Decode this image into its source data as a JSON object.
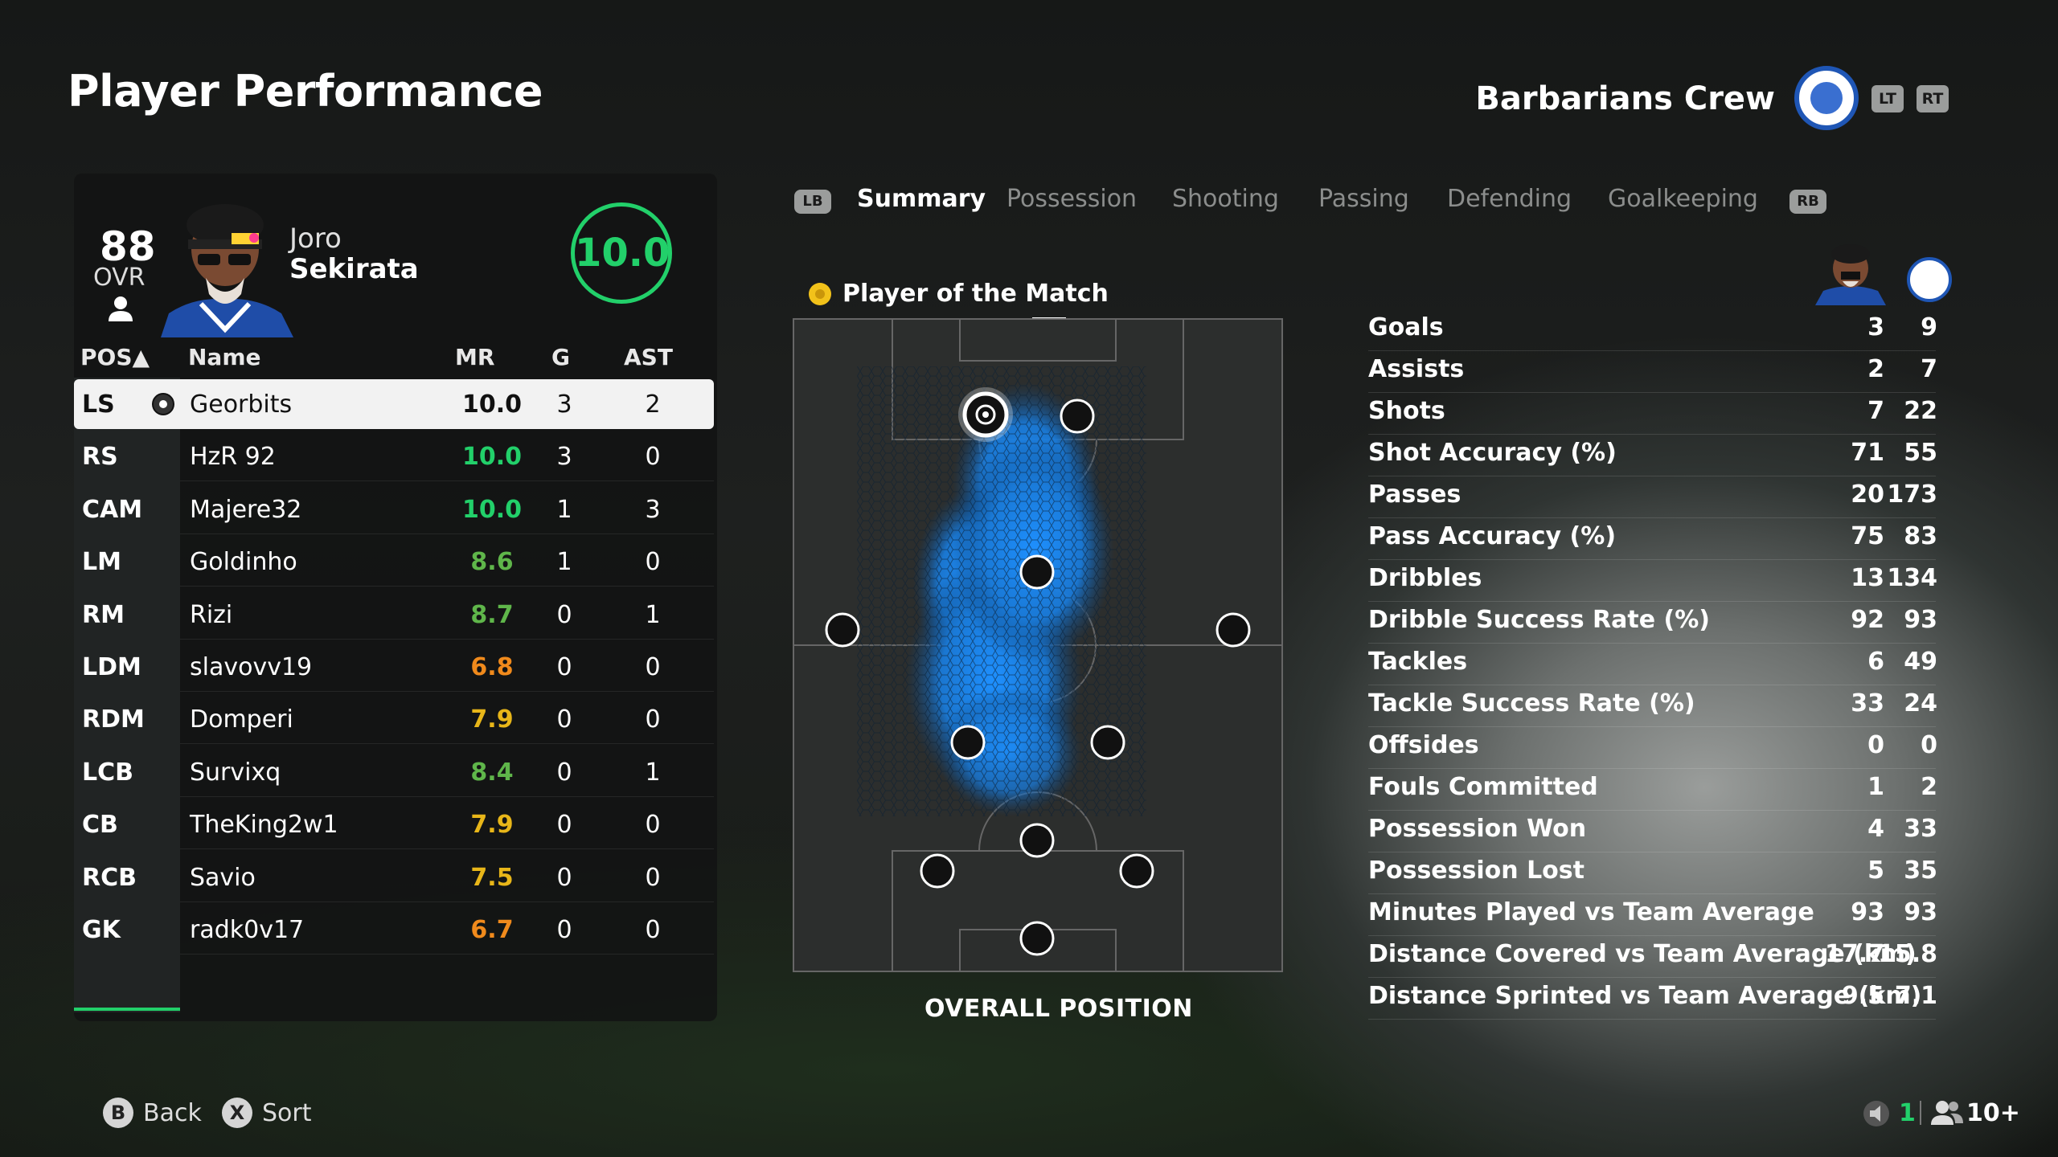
{
  "header": {
    "title": "Player Performance",
    "club_name": "Barbarians Crew",
    "lt": "LT",
    "rt": "RT"
  },
  "player": {
    "ovr": "88",
    "ovr_label": "OVR",
    "first_name": "Joro",
    "last_name": "Sekirata",
    "match_rating": "10.0"
  },
  "table": {
    "headers": {
      "pos": "POS▲",
      "name": "Name",
      "mr": "MR",
      "g": "G",
      "ast": "AST"
    },
    "rows": [
      {
        "pos": "LS",
        "name": "Georbits",
        "mr": "10.0",
        "g": "3",
        "ast": "2",
        "mr_color": "#111111"
      },
      {
        "pos": "RS",
        "name": "HzR 92",
        "mr": "10.0",
        "g": "3",
        "ast": "0",
        "mr_color": "#22d06a"
      },
      {
        "pos": "CAM",
        "name": "Majere32",
        "mr": "10.0",
        "g": "1",
        "ast": "3",
        "mr_color": "#22d06a"
      },
      {
        "pos": "LM",
        "name": "Goldinho",
        "mr": "8.6",
        "g": "1",
        "ast": "0",
        "mr_color": "#5fb64a"
      },
      {
        "pos": "RM",
        "name": "Rizi",
        "mr": "8.7",
        "g": "0",
        "ast": "1",
        "mr_color": "#5fb64a"
      },
      {
        "pos": "LDM",
        "name": "slavovv19",
        "mr": "6.8",
        "g": "0",
        "ast": "0",
        "mr_color": "#f08a1c"
      },
      {
        "pos": "RDM",
        "name": "Domperi",
        "mr": "7.9",
        "g": "0",
        "ast": "0",
        "mr_color": "#e8b619"
      },
      {
        "pos": "LCB",
        "name": "Survixq",
        "mr": "8.4",
        "g": "0",
        "ast": "1",
        "mr_color": "#5fb64a"
      },
      {
        "pos": "CB",
        "name": "TheKing2w1",
        "mr": "7.9",
        "g": "0",
        "ast": "0",
        "mr_color": "#e8b619"
      },
      {
        "pos": "RCB",
        "name": "Savio",
        "mr": "7.5",
        "g": "0",
        "ast": "0",
        "mr_color": "#e8b619"
      },
      {
        "pos": "GK",
        "name": "radk0v17",
        "mr": "6.7",
        "g": "0",
        "ast": "0",
        "mr_color": "#f08a1c"
      }
    ]
  },
  "tabs": {
    "lb": "LB",
    "rb": "RB",
    "items": [
      "Summary",
      "Possession",
      "Shooting",
      "Passing",
      "Defending",
      "Goalkeeping"
    ],
    "active": "Summary"
  },
  "pitch": {
    "potm_label": "Player of the Match",
    "caption": "OVERALL POSITION"
  },
  "stats": [
    {
      "label": "Goals",
      "player": "3",
      "team": "9"
    },
    {
      "label": "Assists",
      "player": "2",
      "team": "7"
    },
    {
      "label": "Shots",
      "player": "7",
      "team": "22"
    },
    {
      "label": "Shot Accuracy (%)",
      "player": "71",
      "team": "55"
    },
    {
      "label": "Passes",
      "player": "20",
      "team": "173"
    },
    {
      "label": "Pass Accuracy (%)",
      "player": "75",
      "team": "83"
    },
    {
      "label": "Dribbles",
      "player": "13",
      "team": "134"
    },
    {
      "label": "Dribble Success Rate (%)",
      "player": "92",
      "team": "93"
    },
    {
      "label": "Tackles",
      "player": "6",
      "team": "49"
    },
    {
      "label": "Tackle Success Rate (%)",
      "player": "33",
      "team": "24"
    },
    {
      "label": "Offsides",
      "player": "0",
      "team": "0"
    },
    {
      "label": "Fouls Committed",
      "player": "1",
      "team": "2"
    },
    {
      "label": "Possession Won",
      "player": "4",
      "team": "33"
    },
    {
      "label": "Possession Lost",
      "player": "5",
      "team": "35"
    },
    {
      "label": "Minutes Played vs Team Average",
      "player": "93",
      "team": "93"
    },
    {
      "label": "Distance Covered vs Team Average (km)",
      "player": "17.7",
      "team": "15.8"
    },
    {
      "label": "Distance Sprinted vs Team Average (km)",
      "player": "9.5",
      "team": "7.1"
    }
  ],
  "footer": {
    "back_button": "B",
    "back_label": "Back",
    "sort_button": "X",
    "sort_label": "Sort",
    "voice_count": "1",
    "players_count": "10+"
  },
  "colors": {
    "accent_green": "#22d06a",
    "heat_blue": "#1e90ff"
  }
}
